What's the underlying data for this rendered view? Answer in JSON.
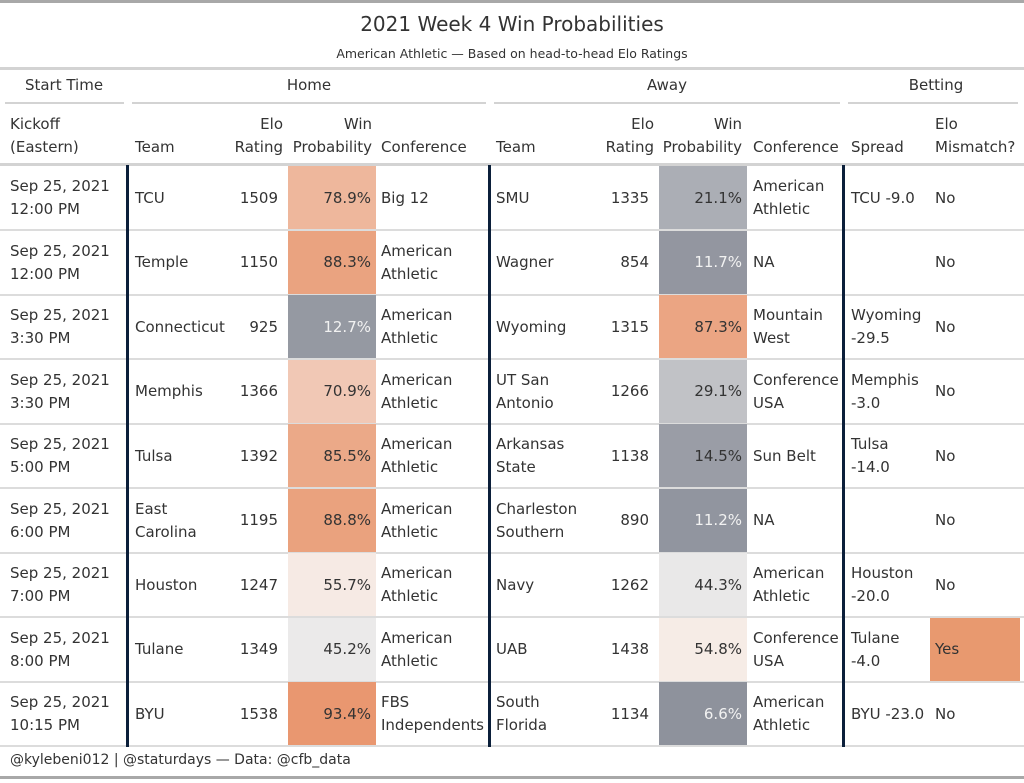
{
  "title": "2021 Week 4 Win Probabilities",
  "subtitle": "American Athletic — Based on head-to-head Elo Ratings",
  "spanners": {
    "start_time": "Start Time",
    "home": "Home",
    "away": "Away",
    "betting": "Betting"
  },
  "columns": {
    "kickoff": [
      "Kickoff",
      "(Eastern)"
    ],
    "home_team": "Team",
    "home_elo": [
      "Elo",
      "Rating"
    ],
    "home_wp": [
      "Win",
      "Probability"
    ],
    "home_conf": "Conference",
    "away_team": "Team",
    "away_elo": [
      "Elo",
      "Rating"
    ],
    "away_wp": [
      "Win",
      "Probability"
    ],
    "away_conf": "Conference",
    "spread": "Spread",
    "mismatch": [
      "Elo",
      "Mismatch?"
    ]
  },
  "rows": [
    {
      "date": "Sep 25, 2021",
      "time": "12:00 PM",
      "home_team": "TCU",
      "home_elo": "1509",
      "home_wp": "78.9%",
      "home_wp_value": 78.9,
      "home_conf": "Big 12",
      "away_team": "SMU",
      "away_elo": "1335",
      "away_wp": "21.1%",
      "away_wp_value": 21.1,
      "away_conf": "American Athletic",
      "spread": "TCU -9.0",
      "mismatch": "No"
    },
    {
      "date": "Sep 25, 2021",
      "time": "12:00 PM",
      "home_team": "Temple",
      "home_elo": "1150",
      "home_wp": "88.3%",
      "home_wp_value": 88.3,
      "home_conf": "American Athletic",
      "away_team": "Wagner",
      "away_elo": "854",
      "away_wp": "11.7%",
      "away_wp_value": 11.7,
      "away_conf": "NA",
      "spread": "",
      "mismatch": "No"
    },
    {
      "date": "Sep 25, 2021",
      "time": "3:30 PM",
      "home_team": "Connecticut",
      "home_elo": "925",
      "home_wp": "12.7%",
      "home_wp_value": 12.7,
      "home_conf": "American Athletic",
      "away_team": "Wyoming",
      "away_elo": "1315",
      "away_wp": "87.3%",
      "away_wp_value": 87.3,
      "away_conf": "Mountain West",
      "spread": "Wyoming -29.5",
      "mismatch": "No"
    },
    {
      "date": "Sep 25, 2021",
      "time": "3:30 PM",
      "home_team": "Memphis",
      "home_elo": "1366",
      "home_wp": "70.9%",
      "home_wp_value": 70.9,
      "home_conf": "American Athletic",
      "away_team": "UT San Antonio",
      "away_elo": "1266",
      "away_wp": "29.1%",
      "away_wp_value": 29.1,
      "away_conf": "Conference USA",
      "spread": "Memphis -3.0",
      "mismatch": "No"
    },
    {
      "date": "Sep 25, 2021",
      "time": "5:00 PM",
      "home_team": "Tulsa",
      "home_elo": "1392",
      "home_wp": "85.5%",
      "home_wp_value": 85.5,
      "home_conf": "American Athletic",
      "away_team": "Arkansas State",
      "away_elo": "1138",
      "away_wp": "14.5%",
      "away_wp_value": 14.5,
      "away_conf": "Sun Belt",
      "spread": "Tulsa -14.0",
      "mismatch": "No"
    },
    {
      "date": "Sep 25, 2021",
      "time": "6:00 PM",
      "home_team": "East Carolina",
      "home_elo": "1195",
      "home_wp": "88.8%",
      "home_wp_value": 88.8,
      "home_conf": "American Athletic",
      "away_team": "Charleston Southern",
      "away_elo": "890",
      "away_wp": "11.2%",
      "away_wp_value": 11.2,
      "away_conf": "NA",
      "spread": "",
      "mismatch": "No"
    },
    {
      "date": "Sep 25, 2021",
      "time": "7:00 PM",
      "home_team": "Houston",
      "home_elo": "1247",
      "home_wp": "55.7%",
      "home_wp_value": 55.7,
      "home_conf": "American Athletic",
      "away_team": "Navy",
      "away_elo": "1262",
      "away_wp": "44.3%",
      "away_wp_value": 44.3,
      "away_conf": "American Athletic",
      "spread": "Houston -20.0",
      "mismatch": "No"
    },
    {
      "date": "Sep 25, 2021",
      "time": "8:00 PM",
      "home_team": "Tulane",
      "home_elo": "1349",
      "home_wp": "45.2%",
      "home_wp_value": 45.2,
      "home_conf": "American Athletic",
      "away_team": "UAB",
      "away_elo": "1438",
      "away_wp": "54.8%",
      "away_wp_value": 54.8,
      "away_conf": "Conference USA",
      "spread": "Tulane -4.0",
      "mismatch": "Yes"
    },
    {
      "date": "Sep 25, 2021",
      "time": "10:15 PM",
      "home_team": "BYU",
      "home_elo": "1538",
      "home_wp": "93.4%",
      "home_wp_value": 93.4,
      "home_conf": "FBS Independents",
      "away_team": "South Florida",
      "away_elo": "1134",
      "away_wp": "6.6%",
      "away_wp_value": 6.6,
      "away_conf": "American Athletic",
      "spread": "BYU -23.0",
      "mismatch": "No"
    }
  ],
  "colors": {
    "high_prob": "#e8946b",
    "mid": "#f7f7f7",
    "low_prob": "#8e929c",
    "mismatch_yes": "#e8996f",
    "divider": "#0b1f3a"
  },
  "footer": "@kylebeni012 | @staturdays — Data: @cfb_data"
}
